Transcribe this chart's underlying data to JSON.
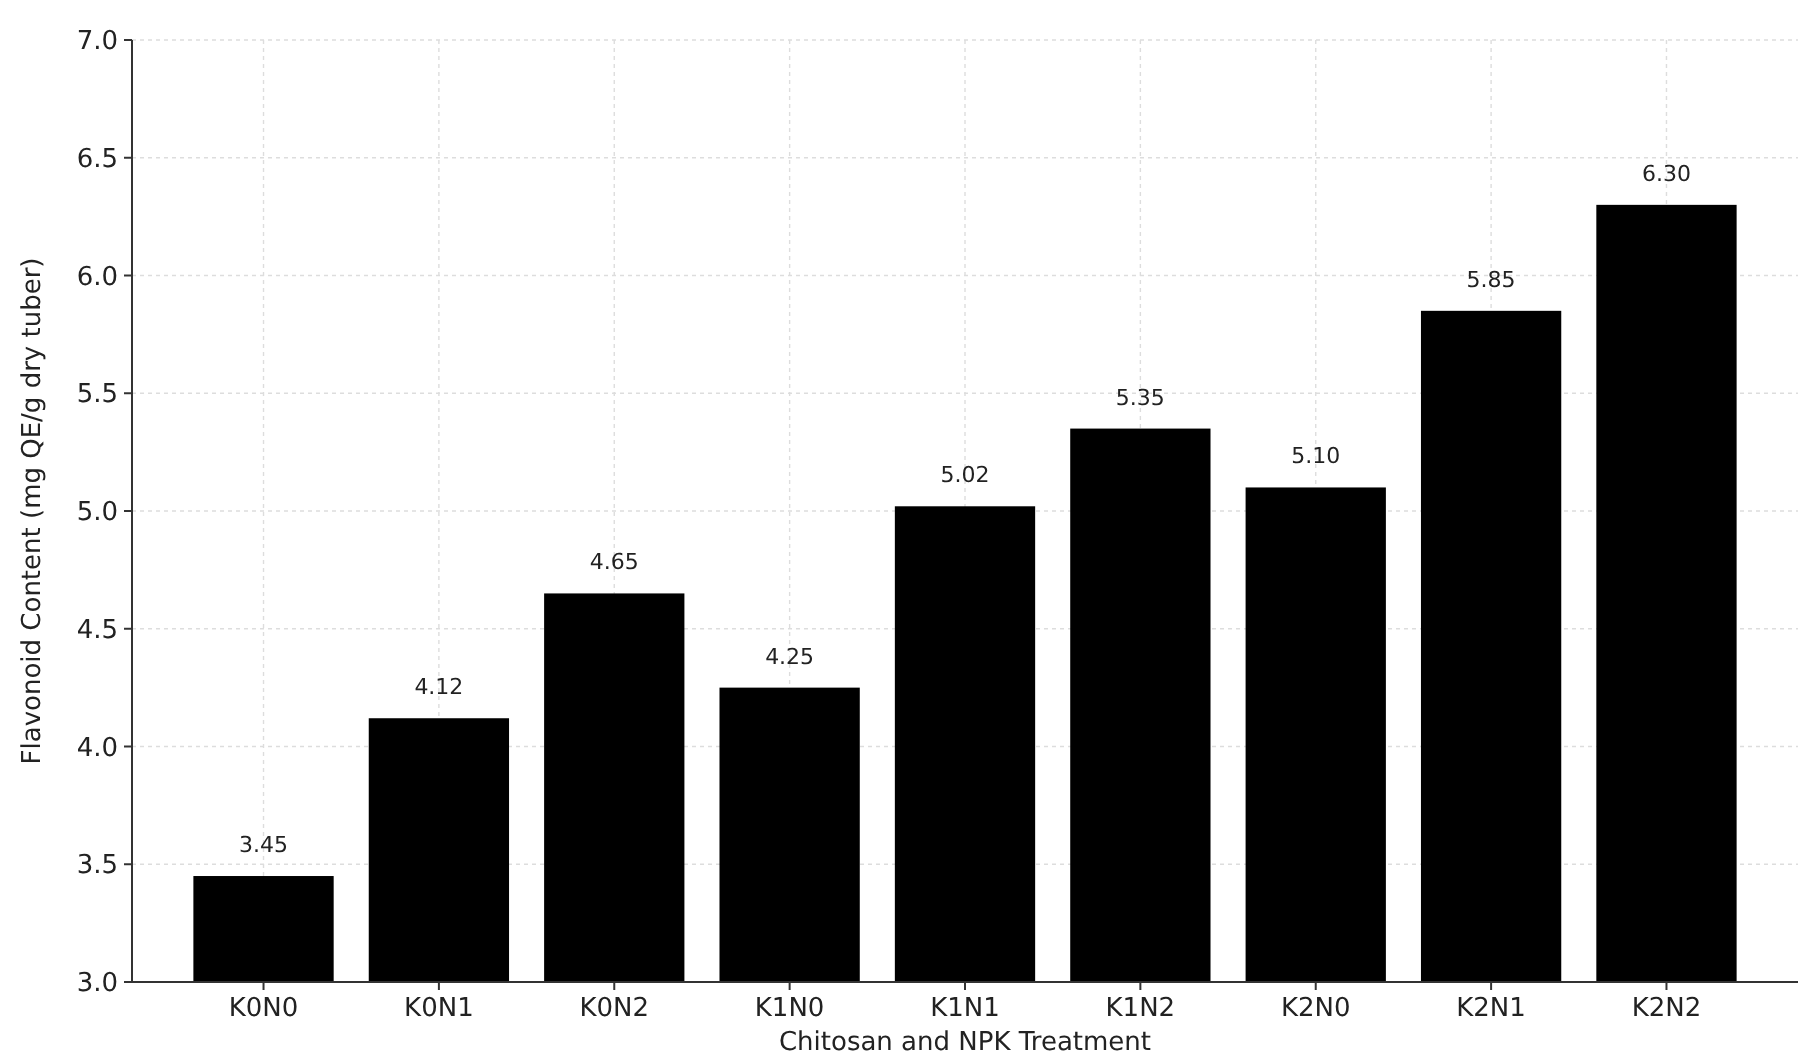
{
  "chart_data": {
    "type": "bar",
    "xlabel": "Chitosan and NPK Treatment",
    "ylabel": "Flavonoid Content (mg QE/g dry tuber)",
    "categories": [
      "K0N0",
      "K0N1",
      "K0N2",
      "K1N0",
      "K1N1",
      "K1N2",
      "K2N0",
      "K2N1",
      "K2N2"
    ],
    "values": [
      3.45,
      4.12,
      4.65,
      4.25,
      5.02,
      5.35,
      5.1,
      5.85,
      6.3
    ],
    "value_labels": [
      "3.45",
      "4.12",
      "4.65",
      "4.25",
      "5.02",
      "5.35",
      "5.10",
      "5.85",
      "6.30"
    ],
    "color": "#000000",
    "ylim": [
      3,
      7
    ],
    "yticks": [
      {
        "value": 3,
        "label": "3.0"
      },
      {
        "value": 3.5,
        "label": "3.5"
      },
      {
        "value": 4,
        "label": "4.0"
      },
      {
        "value": 4.5,
        "label": "4.5"
      },
      {
        "value": 5,
        "label": "5.0"
      },
      {
        "value": 5.5,
        "label": "5.5"
      },
      {
        "value": 6,
        "label": "6.0"
      },
      {
        "value": 6.5,
        "label": "6.5"
      },
      {
        "value": 7,
        "label": "7.0"
      }
    ],
    "grid": true
  }
}
